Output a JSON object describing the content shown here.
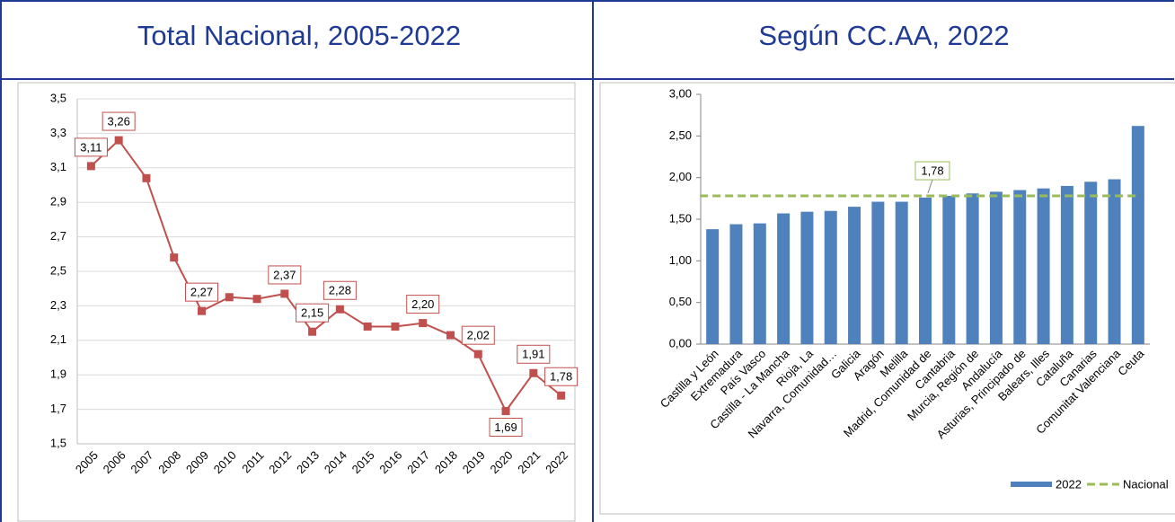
{
  "chart_data": [
    {
      "type": "line",
      "title": "Total Nacional, 2005-2022",
      "categories": [
        "2005",
        "2006",
        "2007",
        "2008",
        "2009",
        "2010",
        "2011",
        "2012",
        "2013",
        "2014",
        "2015",
        "2016",
        "2017",
        "2018",
        "2019",
        "2020",
        "2021",
        "2022"
      ],
      "values": [
        3.11,
        3.26,
        3.04,
        2.58,
        2.27,
        2.35,
        2.34,
        2.37,
        2.15,
        2.28,
        2.18,
        2.18,
        2.2,
        2.13,
        2.02,
        1.69,
        1.91,
        1.78
      ],
      "value_labels": [
        "3,11",
        "3,26",
        null,
        null,
        "2,27",
        null,
        null,
        "2,37",
        "2,15",
        "2,28",
        null,
        null,
        "2,20",
        null,
        "2,02",
        "1,69",
        "1,91",
        "1,78"
      ],
      "color": "#c0504d",
      "ylim": [
        1.5,
        3.5
      ],
      "yticks": [
        {
          "value": 1.5,
          "label": "1,5"
        },
        {
          "value": 1.7,
          "label": "1,7"
        },
        {
          "value": 1.9,
          "label": "1,9"
        },
        {
          "value": 2.1,
          "label": "2,1"
        },
        {
          "value": 2.3,
          "label": "2,3"
        },
        {
          "value": 2.5,
          "label": "2,5"
        },
        {
          "value": 2.7,
          "label": "2,7"
        },
        {
          "value": 2.9,
          "label": "2,9"
        },
        {
          "value": 3.1,
          "label": "3,1"
        },
        {
          "value": 3.3,
          "label": "3,3"
        },
        {
          "value": 3.5,
          "label": "3,5"
        }
      ],
      "grid": true
    },
    {
      "type": "bar",
      "title": "Según CC.AA, 2022",
      "categories": [
        "Castilla y León",
        "Extremadura",
        "País Vasco",
        "Castilla - La Mancha",
        "Rioja, La",
        "Navarra, Comunidad…",
        "Galicia",
        "Aragón",
        "Melilla",
        "Madrid, Comunidad de",
        "Cantabria",
        "Murcia, Región de",
        "Andalucía",
        "Asturias, Principado de",
        "Balears, Illes",
        "Cataluña",
        "Canarias",
        "Comunitat Valenciana",
        "Ceuta"
      ],
      "series": [
        {
          "name": "2022",
          "color": "#4f81bd",
          "values": [
            1.38,
            1.44,
            1.45,
            1.57,
            1.59,
            1.6,
            1.65,
            1.71,
            1.71,
            1.76,
            1.78,
            1.81,
            1.83,
            1.85,
            1.87,
            1.9,
            1.95,
            1.98,
            2.62
          ]
        }
      ],
      "reference": {
        "name": "Nacional",
        "color": "#9bbb59",
        "value": 1.78,
        "value_label": "1,78"
      },
      "ylim": [
        0,
        3
      ],
      "yticks": [
        {
          "value": 0,
          "label": "0,00"
        },
        {
          "value": 0.5,
          "label": "0,50"
        },
        {
          "value": 1,
          "label": "1,00"
        },
        {
          "value": 1.5,
          "label": "1,50"
        },
        {
          "value": 2,
          "label": "2,00"
        },
        {
          "value": 2.5,
          "label": "2,50"
        },
        {
          "value": 3,
          "label": "3,00"
        }
      ],
      "grid": false
    }
  ]
}
